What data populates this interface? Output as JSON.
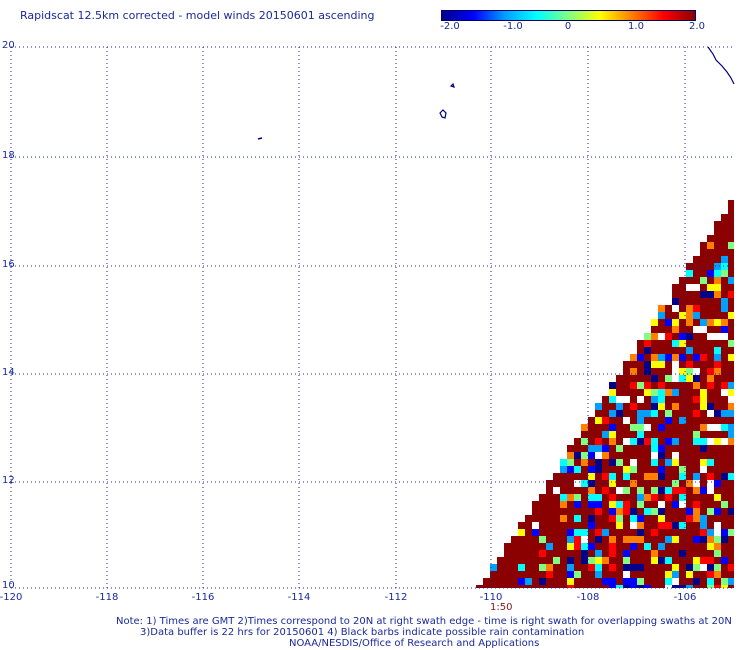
{
  "title": "Rapidscat 12.5km corrected - model winds 20150601 ascending",
  "colorbar": {
    "min": -2.0,
    "max": 2.0,
    "ticks": [
      "-2.0",
      "-1.0",
      "0",
      "1.0",
      "2.0"
    ],
    "colors": [
      "#00008b",
      "#0000ff",
      "#00a0ff",
      "#00ffff",
      "#80ff80",
      "#ffff00",
      "#ff8000",
      "#ff0000",
      "#8b0000"
    ]
  },
  "axes": {
    "lat_labels": [
      "20",
      "18",
      "16",
      "14",
      "12",
      "10"
    ],
    "lon_labels": [
      "-120",
      "-118",
      "-116",
      "-114",
      "-112",
      "-110",
      "-108",
      "-106"
    ],
    "grid": "dotted"
  },
  "time_label": "1:50",
  "notes": [
    "Note: 1) Times are GMT 2)Times correspond to 20N at right swath edge - time is right swath for overlapping swaths at 20N",
    "3)Data buffer is 22 hrs for 20150601 4) Black barbs indicate possible rain contamination",
    "NOAA/NESDIS/Office of Research and Applications"
  ],
  "colors": {
    "text": "#1a2a9a",
    "grid": "#1a2a9a",
    "coast": "#000080",
    "dominant_swath": "#8b0000"
  }
}
